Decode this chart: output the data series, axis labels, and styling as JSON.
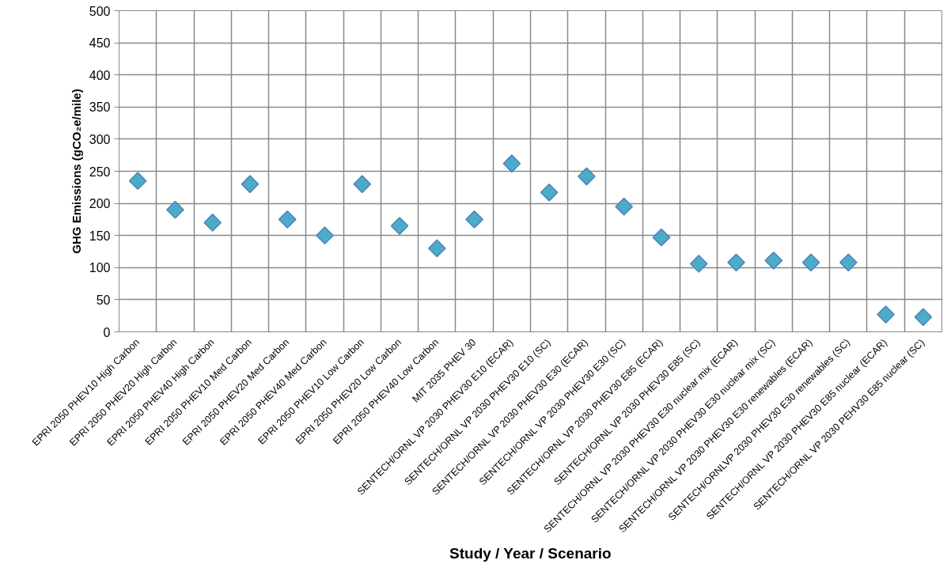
{
  "chart_data": {
    "type": "scatter",
    "xlabel": "Study / Year / Scenario",
    "ylabel": "GHG Emissions (gCO₂e/mile)",
    "categories": [
      "EPRI 2050 PHEV10 High Carbon",
      "EPRI 2050 PHEV20 High Carbon",
      "EPRI 2050 PHEV40 High Carbon",
      "EPRI 2050 PHEV10 Med Carbon",
      "EPRI 2050 PHEV20 Med Carbon",
      "EPRI 2050 PHEV40 Med Carbon",
      "EPRI 2050 PHEV10 Low Carbon",
      "EPRI 2050 PHEV20 Low Carbon",
      "EPRI 2050 PHEV40 Low Carbon",
      "MIT 2035 PHEV 30",
      "SENTECH/ORNL VP 2030 PHEV30 E10 (ECAR)",
      "SENTECH/ORNL VP 2030 PHEV30 E10 (SC)",
      "SENTECH/ORNL VP 2030 PHEV30 E30 (ECAR)",
      "SENTECH/ORNL VP 2030 PHEV30 E30 (SC)",
      "SENTECH/ORNL VP 2030 PHEV30 E85 (ECAR)",
      "SENTECH/ORNL VP 2030 PHEV30 E85 (SC)",
      "SENTECH/ORNL VP 2030 PHEV30 E30 nuclear mix (ECAR)",
      "SENTECH/ORNL VP 2030 PHEV30 E30 nuclear mix (SC)",
      "SENTECH/ORNL VP 2030 PHEV30 E30 renewables (ECAR)",
      "SENTECH/ORNLVP 2030 PHEV30 E30 renewables (SC)",
      "SENTECH/ORNL VP 2030 PHEV30 E85 nuclear (ECAR)",
      "SENTECH/ORNL VP 2030 PEHV30 E85 nuclear (SC)"
    ],
    "series": [
      {
        "color": "#4bacc6",
        "values": [
          235,
          190,
          170,
          230,
          175,
          150,
          230,
          165,
          130,
          175,
          262,
          217,
          242,
          195,
          147,
          106,
          108,
          111,
          108,
          108,
          27,
          23
        ]
      }
    ],
    "ylim": [
      0,
      500
    ],
    "yticks": [
      0,
      50,
      100,
      150,
      200,
      250,
      300,
      350,
      400,
      450,
      500
    ],
    "grid": true,
    "marker": "diamond"
  }
}
